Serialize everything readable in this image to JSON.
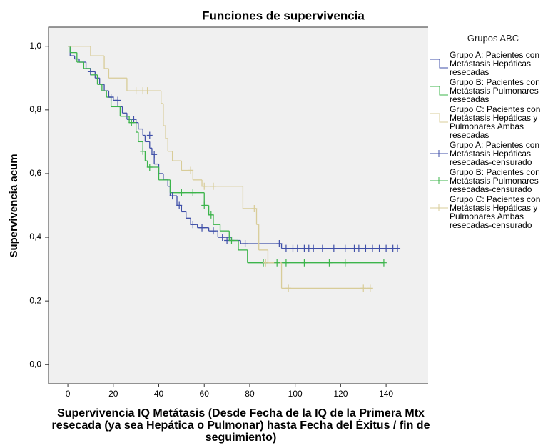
{
  "chart_data": {
    "type": "step",
    "title": "Funciones de supervivencia",
    "x_label": "Supervivencia IQ Metátasis (Desde Fecha de la IQ de la Primera Mtx resecada (ya sea Hepática o Pulmonar) hasta Fecha del Éxitus / fin de seguimiento)",
    "y_label": "Supervivencia acum",
    "legend_title": "Grupos ABC",
    "legend": "right",
    "xlim": [
      -8.5,
      158.8
    ],
    "ylim": [
      -0.06,
      1.06
    ],
    "xticks": [
      0,
      20,
      40,
      60,
      80,
      100,
      120,
      140
    ],
    "yticks": [
      {
        "value": 0,
        "label": "0,0"
      },
      {
        "value": 0.2,
        "label": "0,2"
      },
      {
        "value": 0.4,
        "label": "0,4"
      },
      {
        "value": 0.6,
        "label": "0,6"
      },
      {
        "value": 0.8,
        "label": "0,8"
      },
      {
        "value": 1,
        "label": "1,0"
      }
    ],
    "series": [
      {
        "name": "Grupo A: Pacientes con Metástasis Hepáticas resecadas",
        "color": "#3f4fa8",
        "drawstyle": "steps-post",
        "x": [
          0,
          1,
          3,
          5,
          8,
          10,
          12,
          14,
          16,
          18,
          20,
          22,
          24,
          26,
          30,
          31,
          33,
          34,
          36,
          37,
          38,
          40,
          42,
          44,
          45,
          48,
          50,
          52,
          54,
          57,
          62,
          66,
          72,
          76,
          94,
          146
        ],
        "values": [
          1,
          0.97,
          0.96,
          0.95,
          0.93,
          0.92,
          0.9,
          0.88,
          0.86,
          0.84,
          0.83,
          0.81,
          0.79,
          0.77,
          0.76,
          0.74,
          0.72,
          0.7,
          0.68,
          0.66,
          0.63,
          0.6,
          0.58,
          0.56,
          0.53,
          0.5,
          0.48,
          0.46,
          0.44,
          0.43,
          0.42,
          0.4,
          0.39,
          0.38,
          0.365,
          0.365
        ]
      },
      {
        "name": "Grupo B: Pacientes con Metástasis Pulmonares resecadas",
        "color": "#3cb44b",
        "drawstyle": "steps-post",
        "x": [
          0,
          1,
          4,
          7,
          10,
          13,
          15,
          17,
          19,
          23,
          27,
          30,
          31,
          33,
          34,
          35,
          40,
          45,
          60,
          62,
          64,
          67,
          71,
          75,
          79,
          139
        ],
        "values": [
          1,
          0.98,
          0.95,
          0.93,
          0.91,
          0.88,
          0.86,
          0.84,
          0.81,
          0.78,
          0.76,
          0.73,
          0.7,
          0.67,
          0.64,
          0.62,
          0.58,
          0.54,
          0.5,
          0.47,
          0.44,
          0.42,
          0.39,
          0.36,
          0.32,
          0.32
        ]
      },
      {
        "name": "Grupo C: Pacientes con Metástasis Hepáticas y Pulmonares Ambas resecadas",
        "color": "#d8cc98",
        "drawstyle": "steps-post",
        "x": [
          0,
          10,
          16,
          18,
          26,
          41,
          42,
          43,
          44,
          46,
          50,
          55,
          59,
          77,
          83,
          84,
          88,
          94,
          133
        ],
        "values": [
          1,
          0.97,
          0.93,
          0.9,
          0.86,
          0.82,
          0.75,
          0.71,
          0.67,
          0.64,
          0.61,
          0.58,
          0.56,
          0.49,
          0.44,
          0.36,
          0.32,
          0.24,
          0.24
        ]
      },
      {
        "name": "Grupo A: Pacientes con Metástasis Hepáticas resecadas-censurado",
        "color": "#3f4fa8",
        "marker": "+",
        "x": [
          10,
          19,
          22,
          29,
          36,
          38,
          46,
          49,
          55,
          59,
          64,
          68,
          70,
          78,
          93,
          96,
          99,
          101,
          104,
          106,
          108,
          112,
          117,
          122,
          126,
          128,
          131,
          134,
          137,
          140,
          143,
          145
        ],
        "values": [
          0.92,
          0.84,
          0.83,
          0.77,
          0.72,
          0.66,
          0.53,
          0.5,
          0.44,
          0.43,
          0.42,
          0.4,
          0.39,
          0.38,
          0.38,
          0.365,
          0.365,
          0.365,
          0.365,
          0.365,
          0.365,
          0.365,
          0.365,
          0.365,
          0.365,
          0.365,
          0.365,
          0.365,
          0.365,
          0.365,
          0.365,
          0.365
        ]
      },
      {
        "name": "Grupo B: Pacientes con Metástasis Pulmonares resecadas-censurado",
        "color": "#3cb44b",
        "marker": "+",
        "x": [
          28,
          33,
          36,
          50,
          55,
          60,
          63,
          72,
          86,
          92,
          96,
          104,
          115,
          122,
          139
        ],
        "values": [
          0.76,
          0.67,
          0.62,
          0.54,
          0.54,
          0.5,
          0.47,
          0.39,
          0.32,
          0.32,
          0.32,
          0.32,
          0.32,
          0.32,
          0.32
        ]
      },
      {
        "name": "Grupo C: Pacientes con Metástasis Hepáticas y Pulmonares Ambas resecadas-censurado",
        "color": "#d8cc98",
        "marker": "+",
        "x": [
          30,
          33,
          35,
          54,
          60,
          64,
          82,
          87,
          97,
          130,
          133
        ],
        "values": [
          0.86,
          0.86,
          0.86,
          0.61,
          0.56,
          0.56,
          0.49,
          0.32,
          0.24,
          0.24,
          0.24
        ]
      }
    ]
  }
}
